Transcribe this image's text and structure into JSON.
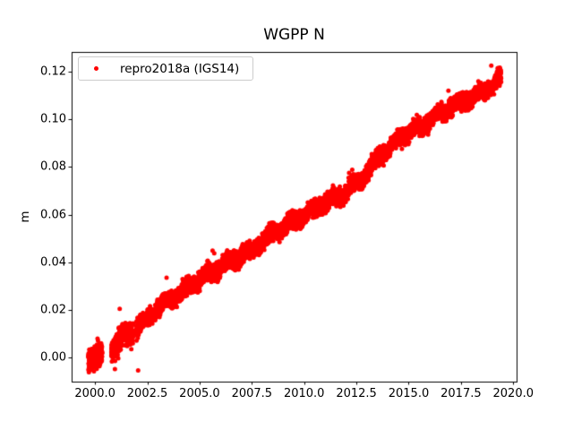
{
  "chart_data": {
    "type": "scatter",
    "title": "WGPP N",
    "xlabel": "",
    "ylabel": "m",
    "grid": false,
    "legend": {
      "label": "repro2018a (IGS14)",
      "location": "upper left",
      "marker": "circle",
      "marker_color": "#ff0000"
    },
    "xlim": [
      1998.88,
      2020.16
    ],
    "ylim": [
      -0.01016,
      0.12828
    ],
    "xticks": {
      "values": [
        2000.0,
        2002.5,
        2005.0,
        2007.5,
        2010.0,
        2012.5,
        2015.0,
        2017.5,
        2020.0
      ],
      "labels": [
        "2000.0",
        "2002.5",
        "2005.0",
        "2007.5",
        "2010.0",
        "2012.5",
        "2015.0",
        "2017.5",
        "2020.0"
      ]
    },
    "yticks": {
      "values": [
        0.0,
        0.02,
        0.04,
        0.06,
        0.08,
        0.1,
        0.12
      ],
      "labels": [
        "0.00",
        "0.02",
        "0.04",
        "0.06",
        "0.08",
        "0.10",
        "0.12"
      ]
    },
    "series": [
      {
        "name": "repro2018a (IGS14)",
        "color": "#ff0000",
        "marker": "circle",
        "marker_diameter_px": 5,
        "trend_anchors": [
          [
            1999.68,
            -0.0005
          ],
          [
            2000.34,
            0.0012
          ],
          [
            2000.78,
            0.0038
          ],
          [
            2001.31,
            0.0078
          ],
          [
            2001.4,
            0.0085
          ],
          [
            2001.82,
            0.0108
          ],
          [
            2001.97,
            0.012
          ],
          [
            2002.38,
            0.015
          ],
          [
            2002.46,
            0.0155
          ],
          [
            2003.0,
            0.021
          ],
          [
            2003.5,
            0.024
          ],
          [
            2004.0,
            0.0265
          ],
          [
            2004.5,
            0.03
          ],
          [
            2005.0,
            0.033
          ],
          [
            2005.5,
            0.0355
          ],
          [
            2006.0,
            0.038
          ],
          [
            2006.5,
            0.0405
          ],
          [
            2007.0,
            0.0432
          ],
          [
            2007.5,
            0.0447
          ],
          [
            2008.0,
            0.049
          ],
          [
            2008.5,
            0.052
          ],
          [
            2009.0,
            0.055
          ],
          [
            2009.5,
            0.0572
          ],
          [
            2010.0,
            0.0598
          ],
          [
            2010.5,
            0.0625
          ],
          [
            2011.0,
            0.065
          ],
          [
            2011.5,
            0.0673
          ],
          [
            2012.0,
            0.07
          ],
          [
            2012.5,
            0.073
          ],
          [
            2013.0,
            0.0775
          ],
          [
            2013.6,
            0.0845
          ],
          [
            2014.0,
            0.0872
          ],
          [
            2014.5,
            0.0915
          ],
          [
            2015.0,
            0.0945
          ],
          [
            2015.5,
            0.0968
          ],
          [
            2016.0,
            0.0995
          ],
          [
            2016.5,
            0.1022
          ],
          [
            2017.0,
            0.105
          ],
          [
            2017.5,
            0.1068
          ],
          [
            2018.0,
            0.109
          ],
          [
            2018.5,
            0.111
          ],
          [
            2019.0,
            0.1145
          ],
          [
            2019.42,
            0.118
          ]
        ],
        "segments": [
          {
            "start": 1999.68,
            "end": 2000.34,
            "noise_sd": 0.0022,
            "points_per_year": 420
          },
          {
            "start": 2000.78,
            "end": 2001.31,
            "noise_sd": 0.0024,
            "points_per_year": 420
          },
          {
            "start": 2001.4,
            "end": 2001.82,
            "noise_sd": 0.0022,
            "points_per_year": 420
          },
          {
            "start": 2001.97,
            "end": 2002.38,
            "noise_sd": 0.0017,
            "points_per_year": 380
          },
          {
            "start": 2002.46,
            "end": 2019.42,
            "noise_sd": 0.0016,
            "points_per_year": 360
          }
        ],
        "seasonal_amplitude": 0.0012,
        "outliers": [
          [
            2000.12,
            0.0079
          ],
          [
            2000.95,
            -0.0049
          ],
          [
            2001.18,
            0.0204
          ],
          [
            2001.82,
            0.0143
          ],
          [
            2002.06,
            -0.0055
          ],
          [
            2003.42,
            0.0335
          ],
          [
            2005.0,
            0.036
          ],
          [
            2005.62,
            0.0449
          ],
          [
            2005.7,
            0.0437
          ],
          [
            2012.15,
            0.0775
          ],
          [
            2012.3,
            0.0788
          ],
          [
            2016.9,
            0.112
          ],
          [
            2018.95,
            0.1225
          ]
        ]
      }
    ]
  }
}
